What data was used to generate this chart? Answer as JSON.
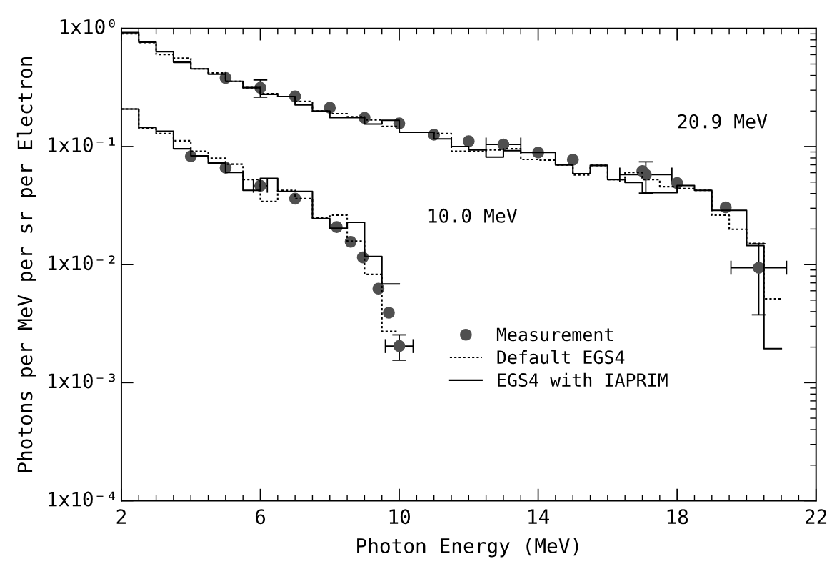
{
  "chart_data": {
    "type": "step",
    "xlabel": "Photon Energy (MeV)",
    "ylabel": "Photons per MeV per sr per Electron",
    "log": "y",
    "xlim": [
      2,
      22
    ],
    "ylim": [
      0.0001,
      1
    ],
    "xticks": [
      2,
      6,
      10,
      14,
      18,
      22
    ],
    "yticks": [
      {
        "value": 0.0001,
        "label": "1x10⁻⁴"
      },
      {
        "value": 0.001,
        "label": "1x10⁻³"
      },
      {
        "value": 0.01,
        "label": "1x10⁻²"
      },
      {
        "value": 0.1,
        "label": "1x10⁻¹"
      },
      {
        "value": 1,
        "label": "1x10⁰"
      }
    ],
    "grid": false,
    "legend": "bottom",
    "annotations": [
      "20.9 MeV",
      "10.0 MeV"
    ],
    "series": [
      {
        "type": "scatter",
        "name": "Measurement",
        "color": "#505050",
        "marker": "circle",
        "x": [
          5.0,
          6.0,
          7.0,
          8.0,
          9.0,
          10.0,
          11.0,
          12.0,
          13.0,
          14.0,
          15.0,
          17.0,
          17.1,
          18.0,
          19.4,
          20.35
        ],
        "values": [
          0.381,
          0.314,
          0.266,
          0.213,
          0.175,
          0.157,
          0.126,
          0.111,
          0.104,
          0.0889,
          0.0774,
          0.062,
          0.0578,
          0.049,
          0.0305,
          0.0094
        ],
        "errors": [
          null,
          [
            0.262,
            0.366
          ],
          null,
          null,
          null,
          null,
          null,
          null,
          null,
          null,
          null,
          null,
          [
            0.0403,
            0.0742
          ],
          null,
          null,
          [
            0.00376,
            0.015
          ]
        ],
        "xerrors": [
          null,
          null,
          null,
          null,
          null,
          null,
          null,
          null,
          0.5,
          null,
          null,
          null,
          0.75,
          null,
          null,
          0.8
        ]
      },
      {
        "type": "scatter",
        "color": "#505050",
        "marker": "circle",
        "x": [
          4.0,
          5.0,
          6.0,
          7.0,
          8.2,
          8.6,
          8.95,
          9.4,
          9.7,
          10.0
        ],
        "values": [
          0.0826,
          0.0661,
          0.0465,
          0.0362,
          0.0208,
          0.0156,
          0.0115,
          0.00626,
          0.00391,
          0.00204
        ],
        "errors": [
          null,
          null,
          null,
          null,
          null,
          null,
          null,
          null,
          null,
          [
            0.00155,
            0.00254
          ]
        ],
        "xerrors": [
          null,
          null,
          0.2,
          null,
          null,
          null,
          null,
          null,
          null,
          0.4
        ]
      },
      {
        "name": "Default EGS4",
        "color": "#000000",
        "line_style": "dotted",
        "x": [
          2,
          2.5,
          3,
          3.5,
          4,
          4.5,
          5,
          5.5,
          6,
          6.5,
          7,
          7.5,
          8,
          8.5,
          9,
          9.5,
          10,
          10.5,
          11,
          11.5,
          12,
          12.5,
          13,
          13.5,
          14,
          14.5,
          15,
          15.5,
          16,
          16.5,
          17,
          17.5,
          18,
          18.5,
          19,
          19.5,
          20,
          20.5,
          21
        ],
        "values": [
          0.901,
          0.759,
          0.603,
          0.56,
          0.455,
          0.42,
          0.357,
          0.315,
          0.28,
          0.265,
          0.241,
          0.2,
          0.19,
          0.179,
          0.168,
          0.148,
          0.132,
          0.132,
          0.129,
          0.0914,
          0.0914,
          0.0935,
          0.0957,
          0.0778,
          0.0767,
          0.0699,
          0.0575,
          0.0692,
          0.0525,
          0.0603,
          0.0525,
          0.0457,
          0.0441,
          0.0426,
          0.0262,
          0.0199,
          0.0151,
          0.00513,
          0.00513
        ]
      },
      {
        "name": "EGS4 with IAPRIM",
        "color": "#000000",
        "line_style": "solid",
        "x": [
          2,
          2.5,
          3,
          3.5,
          4,
          4.5,
          5,
          5.5,
          6,
          6.5,
          7,
          7.5,
          8,
          8.5,
          9,
          9.5,
          10,
          10.5,
          11,
          11.5,
          12,
          12.5,
          13,
          13.5,
          14,
          14.5,
          15,
          15.5,
          16,
          16.5,
          17,
          17.5,
          18,
          18.5,
          19,
          19.5,
          20,
          20.5,
          21
        ],
        "values": [
          0.922,
          0.766,
          0.637,
          0.517,
          0.455,
          0.41,
          0.357,
          0.315,
          0.277,
          0.265,
          0.225,
          0.2,
          0.176,
          0.176,
          0.155,
          0.167,
          0.132,
          0.132,
          0.116,
          0.1,
          0.0935,
          0.0814,
          0.0922,
          0.0893,
          0.0893,
          0.0699,
          0.0589,
          0.0692,
          0.0525,
          0.0496,
          0.0407,
          0.0407,
          0.0468,
          0.0426,
          0.0288,
          0.0288,
          0.0145,
          0.00194,
          0.00194
        ]
      },
      {
        "color": "#000000",
        "line_style": "dotted",
        "x": [
          2,
          2.5,
          3,
          3.5,
          4,
          4.5,
          5,
          5.5,
          6,
          6.5,
          7,
          7.5,
          8,
          8.5,
          9,
          9.5,
          10
        ],
        "values": [
          0.208,
          0.142,
          0.129,
          0.112,
          0.0914,
          0.0796,
          0.0709,
          0.0525,
          0.0343,
          0.0426,
          0.0362,
          0.025,
          0.0262,
          0.0158,
          0.00826,
          0.00272,
          0.00272
        ]
      },
      {
        "color": "#000000",
        "line_style": "solid",
        "x": [
          2,
          2.5,
          3,
          3.5,
          4,
          4.5,
          5,
          5.5,
          6,
          6.5,
          7,
          7.5,
          8,
          8.5,
          9,
          9.5,
          10
        ],
        "values": [
          0.208,
          0.145,
          0.135,
          0.0957,
          0.0833,
          0.0725,
          0.0603,
          0.0426,
          0.0537,
          0.0417,
          0.0417,
          0.0245,
          0.0203,
          0.0228,
          0.0117,
          0.00686,
          0.00686
        ]
      }
    ]
  }
}
